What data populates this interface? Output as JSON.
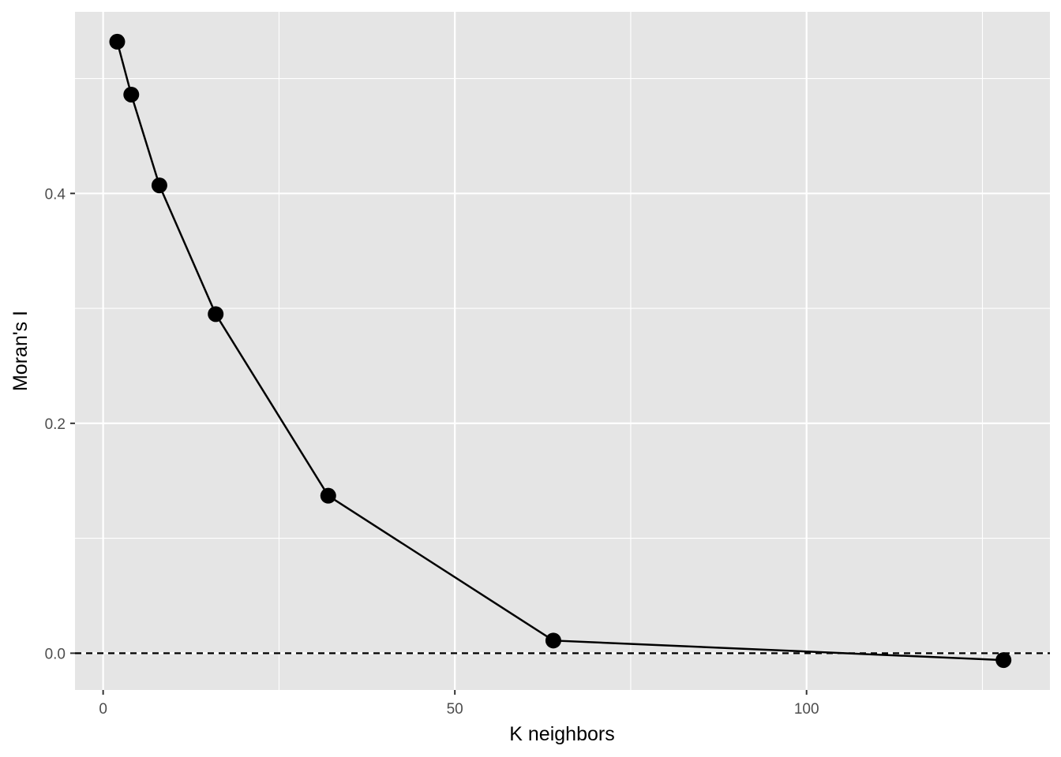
{
  "chart_data": {
    "type": "line",
    "title": "",
    "xlabel": "K neighbors",
    "ylabel": "Moran's I",
    "xlim": [
      -4,
      134.6
    ],
    "ylim": [
      -0.032,
      0.558
    ],
    "x_ticks": [
      0,
      50,
      100
    ],
    "x_tick_labels": [
      "0",
      "50",
      "100"
    ],
    "y_ticks": [
      0.0,
      0.2,
      0.4
    ],
    "y_tick_labels": [
      "0.0",
      "0.2",
      "0.4"
    ],
    "x_minor": [
      25,
      75,
      125
    ],
    "y_minor": [
      0.1,
      0.3,
      0.5
    ],
    "grid": true,
    "panel_background": "#e5e5e5",
    "grid_color": "#ffffff",
    "line_color": "#000000",
    "reference_line": {
      "y": 0,
      "style": "dashed",
      "color": "#000000"
    },
    "series": [
      {
        "x": [
          2,
          4,
          8,
          16,
          32,
          64,
          128
        ],
        "y": [
          0.532,
          0.486,
          0.407,
          0.295,
          0.137,
          0.011,
          -0.006
        ]
      }
    ]
  }
}
